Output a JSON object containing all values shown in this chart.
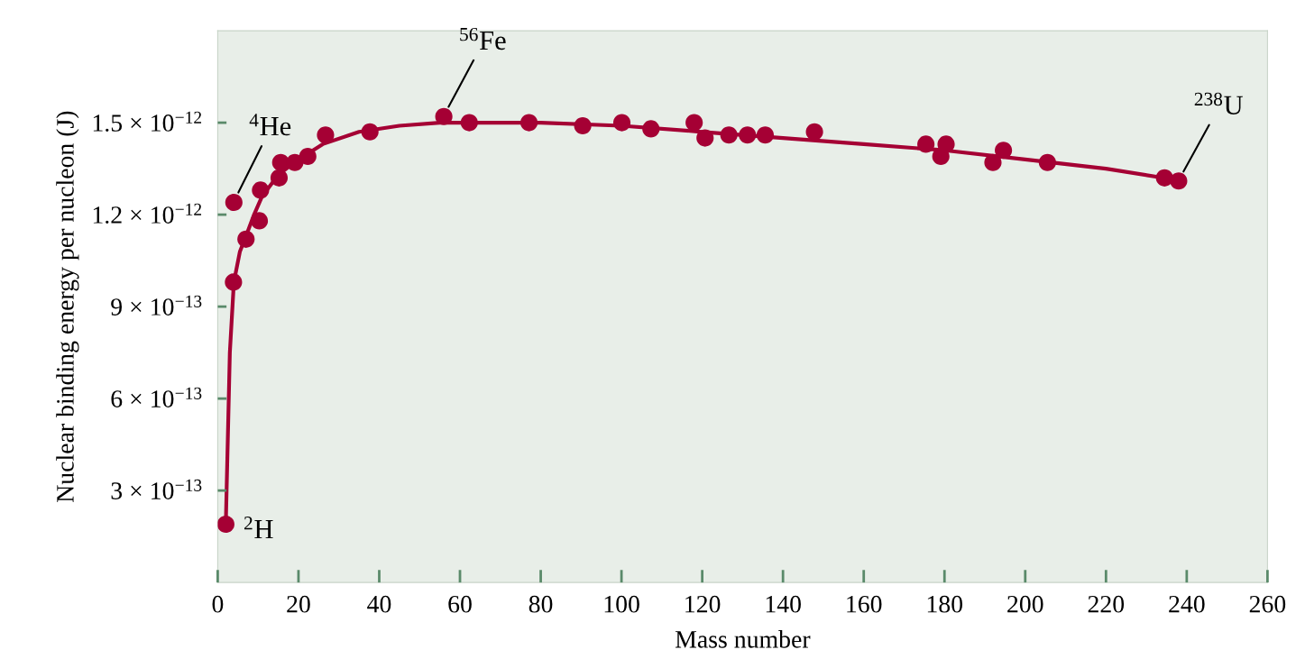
{
  "chart_data": {
    "type": "scatter",
    "xlabel": "Mass number",
    "ylabel": "Nuclear binding energy per nucleon (J)",
    "xlim": [
      0,
      260
    ],
    "xticks": [
      0,
      20,
      40,
      60,
      80,
      100,
      120,
      140,
      160,
      180,
      200,
      220,
      240,
      260
    ],
    "ylim": [
      0,
      1.8e-12
    ],
    "yticks": [
      {
        "value": 3e-13,
        "label": "3 × 10$^{−13}$"
      },
      {
        "value": 6e-13,
        "label": "6 × 10$^{−13}$"
      },
      {
        "value": 9e-13,
        "label": "9 × 10$^{−13}$"
      },
      {
        "value": 1.2e-12,
        "label": "1.2 × 10$^{−12}$"
      },
      {
        "value": 1.5e-12,
        "label": "1.5 × 10$^{−12}$"
      }
    ],
    "grid": false,
    "marker": "circle",
    "series": [
      {
        "type": "line",
        "color": "#a50034",
        "marker": "none",
        "line_style": "solid",
        "x": [
          2,
          3,
          4,
          5.5,
          7,
          9,
          11,
          15,
          20,
          26,
          35,
          45,
          55,
          65,
          80,
          100,
          120,
          140,
          160,
          180,
          200,
          220,
          239
        ],
        "values": [
          1.9e-13,
          7.5e-13,
          9.8e-13,
          1.08e-12,
          1.13e-12,
          1.2e-12,
          1.26e-12,
          1.33e-12,
          1.38e-12,
          1.43e-12,
          1.47e-12,
          1.49e-12,
          1.5e-12,
          1.5e-12,
          1.5e-12,
          1.49e-12,
          1.47e-12,
          1.45e-12,
          1.43e-12,
          1.41e-12,
          1.38e-12,
          1.35e-12,
          1.31e-12
        ]
      },
      {
        "color": "#a50034",
        "x": [
          2,
          3.9,
          4,
          7,
          10.3,
          10.6,
          15.2,
          15.6,
          19.1,
          22.3,
          26.7,
          37.7,
          56,
          62.3,
          77.1,
          90.4,
          100.1,
          107.3,
          118,
          120.7,
          126.6,
          131.2,
          135.6,
          147.8,
          175.4,
          179.1,
          180.4,
          192,
          194.6,
          205.5,
          234.5,
          238
        ],
        "values": [
          1.9e-13,
          9.8e-13,
          1.24e-12,
          1.12e-12,
          1.18e-12,
          1.28e-12,
          1.32e-12,
          1.37e-12,
          1.37e-12,
          1.39e-12,
          1.46e-12,
          1.47e-12,
          1.52e-12,
          1.5e-12,
          1.5e-12,
          1.49e-12,
          1.5e-12,
          1.48e-12,
          1.5e-12,
          1.45e-12,
          1.46e-12,
          1.46e-12,
          1.46e-12,
          1.47e-12,
          1.43e-12,
          1.39e-12,
          1.43e-12,
          1.37e-12,
          1.41e-12,
          1.37e-12,
          1.32e-12,
          1.31e-12
        ]
      }
    ],
    "annotations": [
      {
        "text": "$^{2}$H",
        "x": 2,
        "y": 1.9e-13
      },
      {
        "text": "$^{4}$He",
        "x": 4,
        "y": 1.243e-12
      },
      {
        "text": "$^{56}$Fe",
        "x": 56,
        "y": 1.523e-12
      },
      {
        "text": "$^{238}$U",
        "x": 238,
        "y": 1.312e-12
      }
    ]
  }
}
